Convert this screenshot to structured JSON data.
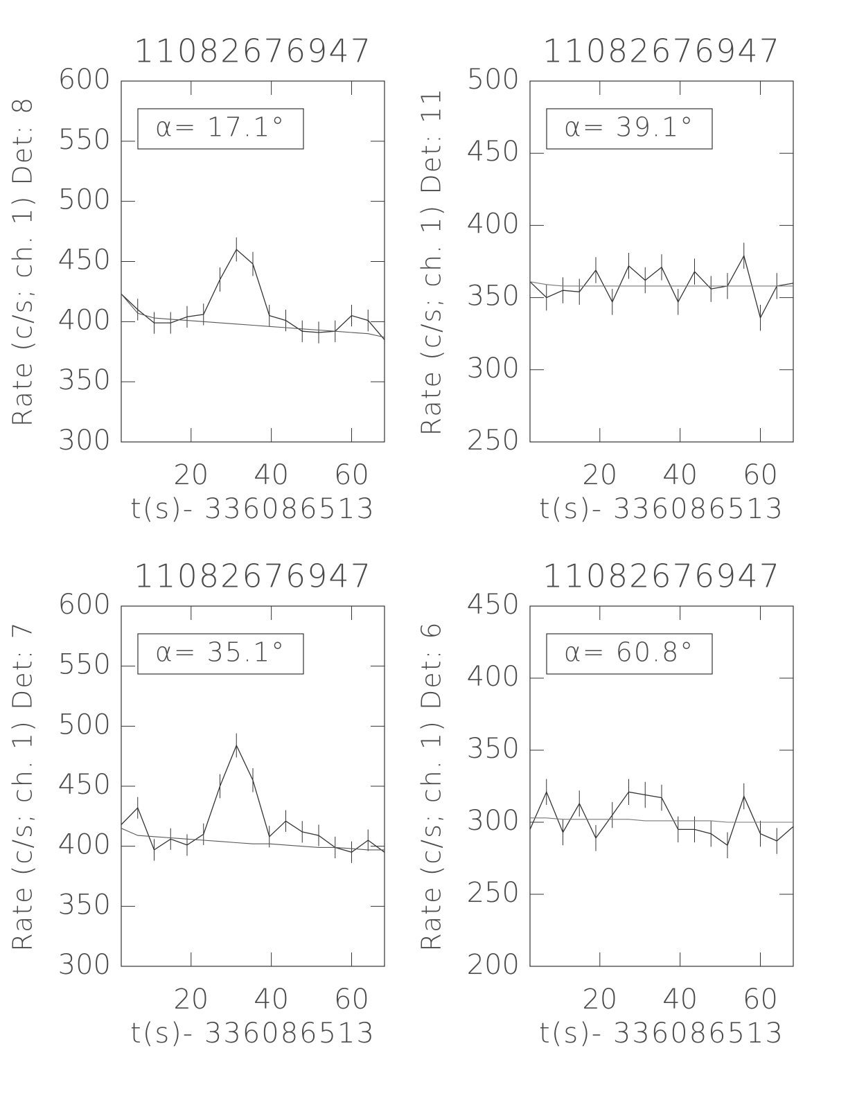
{
  "chart_data": [
    {
      "type": "line",
      "title": "11082676947",
      "xlabel": "t(s)- 336086513",
      "ylabel": "Rate (c/s; ch. 1) Det: 8",
      "annotation": "α= 17.1°",
      "x": [
        2.6,
        6.7,
        10.8,
        14.9,
        19.0,
        23.1,
        27.2,
        31.3,
        35.4,
        39.5,
        43.6,
        47.7,
        51.8,
        55.9,
        60.0,
        64.1,
        68.2
      ],
      "xlim": [
        2.6,
        68.2
      ],
      "xticks": [
        20,
        40,
        60
      ],
      "ylim": [
        300,
        600
      ],
      "yticks": [
        300,
        350,
        400,
        450,
        500,
        550,
        600
      ],
      "series": [
        {
          "color": "#333333",
          "values": [
            423,
            410,
            399,
            399,
            404,
            406,
            435,
            460,
            448,
            405,
            401,
            392,
            391,
            392,
            405,
            401,
            385
          ],
          "errors": [
            9,
            9,
            9,
            9,
            9,
            9,
            10,
            10,
            10,
            9,
            9,
            9,
            9,
            9,
            9,
            9,
            9
          ]
        },
        {
          "color": "#555555",
          "values": [
            423,
            407,
            403,
            402,
            401,
            400,
            399,
            398,
            397,
            396,
            395,
            394,
            393,
            392,
            391,
            390,
            387
          ]
        }
      ]
    },
    {
      "type": "line",
      "title": "11082676947",
      "xlabel": "t(s)- 336086513",
      "ylabel": "Rate (c/s; ch. 1) Det: 11",
      "annotation": "α= 39.1°",
      "x": [
        2.6,
        6.7,
        10.8,
        14.9,
        19.0,
        23.1,
        27.2,
        31.3,
        35.4,
        39.5,
        43.6,
        47.7,
        51.8,
        55.9,
        60.0,
        64.1,
        68.2
      ],
      "xlim": [
        2.6,
        68.2
      ],
      "xticks": [
        20,
        40,
        60
      ],
      "ylim": [
        250,
        500
      ],
      "yticks": [
        250,
        300,
        350,
        400,
        450,
        500
      ],
      "series": [
        {
          "color": "#333333",
          "values": [
            361,
            350,
            355,
            354,
            369,
            347,
            372,
            362,
            371,
            347,
            368,
            356,
            358,
            379,
            336,
            358,
            360
          ],
          "errors": [
            9,
            9,
            9,
            9,
            9,
            9,
            9,
            9,
            9,
            9,
            9,
            9,
            9,
            9,
            9,
            9,
            9
          ]
        },
        {
          "color": "#777777",
          "values": [
            361,
            359,
            358,
            358,
            358,
            358,
            358,
            358,
            358,
            358,
            358,
            358,
            358,
            358,
            358,
            358,
            358
          ]
        }
      ]
    },
    {
      "type": "line",
      "title": "11082676947",
      "xlabel": "t(s)- 336086513",
      "ylabel": "Rate (c/s; ch. 1) Det: 7",
      "annotation": "α= 35.1°",
      "x": [
        2.6,
        6.7,
        10.8,
        14.9,
        19.0,
        23.1,
        27.2,
        31.3,
        35.4,
        39.5,
        43.6,
        47.7,
        51.8,
        55.9,
        60.0,
        64.1,
        68.2
      ],
      "xlim": [
        2.6,
        68.2
      ],
      "xticks": [
        20,
        40,
        60
      ],
      "ylim": [
        300,
        600
      ],
      "yticks": [
        300,
        350,
        400,
        450,
        500,
        550,
        600
      ],
      "series": [
        {
          "color": "#333333",
          "values": [
            418,
            432,
            397,
            406,
            401,
            410,
            450,
            484,
            455,
            408,
            421,
            412,
            409,
            399,
            395,
            405,
            395
          ],
          "errors": [
            9,
            9,
            9,
            9,
            9,
            9,
            10,
            10,
            10,
            9,
            9,
            9,
            9,
            9,
            9,
            9,
            9
          ]
        },
        {
          "color": "#555555",
          "values": [
            415,
            409,
            408,
            407,
            406,
            405,
            404,
            403,
            402,
            402,
            401,
            400,
            399,
            399,
            398,
            397,
            397
          ]
        }
      ]
    },
    {
      "type": "line",
      "title": "11082676947",
      "xlabel": "t(s)- 336086513",
      "ylabel": "Rate (c/s; ch. 1) Det: 6",
      "annotation": "α= 60.8°",
      "x": [
        2.6,
        6.7,
        10.8,
        14.9,
        19.0,
        23.1,
        27.2,
        31.3,
        35.4,
        39.5,
        43.6,
        47.7,
        51.8,
        55.9,
        60.0,
        64.1,
        68.2
      ],
      "xlim": [
        2.6,
        68.2
      ],
      "xticks": [
        20,
        40,
        60
      ],
      "ylim": [
        200,
        450
      ],
      "yticks": [
        200,
        250,
        300,
        350,
        400,
        450
      ],
      "series": [
        {
          "color": "#333333",
          "values": [
            295,
            321,
            293,
            313,
            289,
            305,
            321,
            319,
            317,
            295,
            295,
            292,
            284,
            318,
            292,
            287,
            297
          ],
          "errors": [
            9,
            9,
            9,
            9,
            9,
            9,
            9,
            9,
            9,
            9,
            9,
            9,
            9,
            9,
            9,
            9,
            9
          ]
        },
        {
          "color": "#777777",
          "values": [
            303,
            303,
            302,
            302,
            302,
            302,
            302,
            301,
            301,
            301,
            301,
            301,
            300,
            300,
            300,
            300,
            300
          ]
        }
      ]
    }
  ]
}
